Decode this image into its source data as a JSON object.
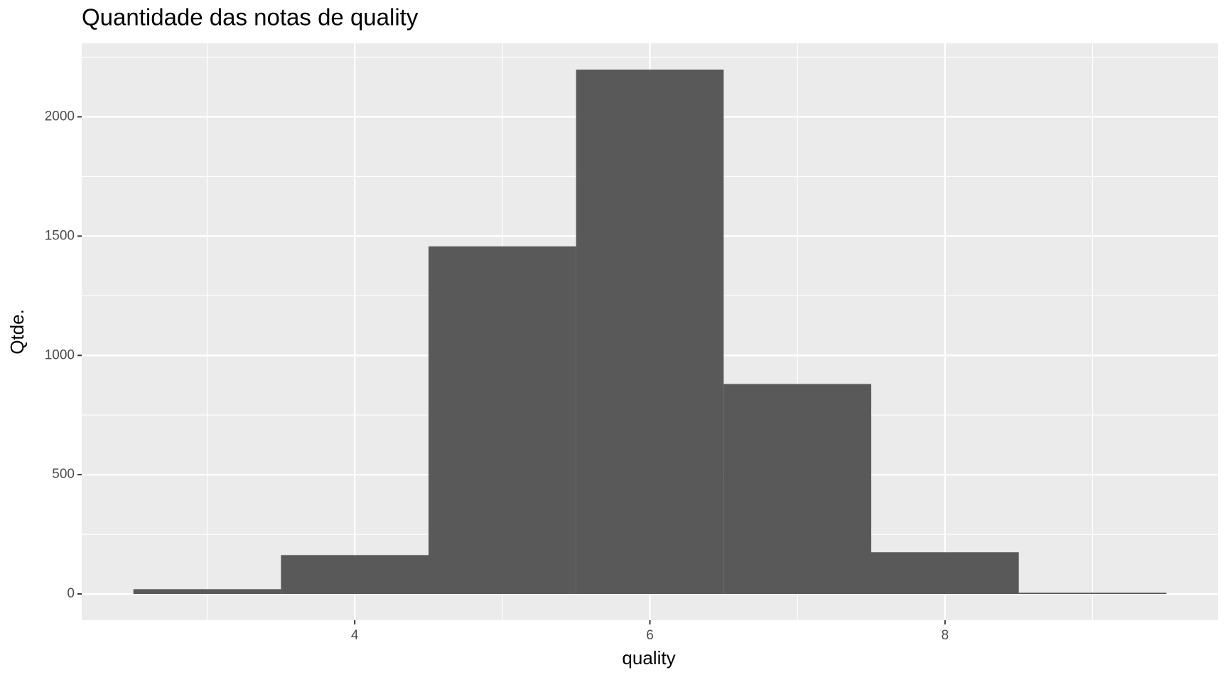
{
  "chart_data": {
    "type": "histogram",
    "title": "Quantidade das notas de quality",
    "x_label": "quality",
    "y_label": "Qtde.",
    "bins": [
      2.5,
      3.5,
      4.5,
      5.5,
      6.5,
      7.5,
      8.5,
      9.5
    ],
    "values": [
      20,
      163,
      1457,
      2198,
      880,
      175,
      5
    ],
    "color": "#595959",
    "xlim": [
      2.15,
      9.85
    ],
    "xticks": [
      4,
      6,
      8
    ],
    "minor_xticks": [
      3,
      5,
      7,
      9
    ],
    "ylim": [
      -110,
      2308
    ],
    "yticks": [
      0,
      500,
      1000,
      1500,
      2000
    ],
    "minor_yticks": [
      250,
      750,
      1250,
      1750,
      2250
    ],
    "grid": true
  }
}
